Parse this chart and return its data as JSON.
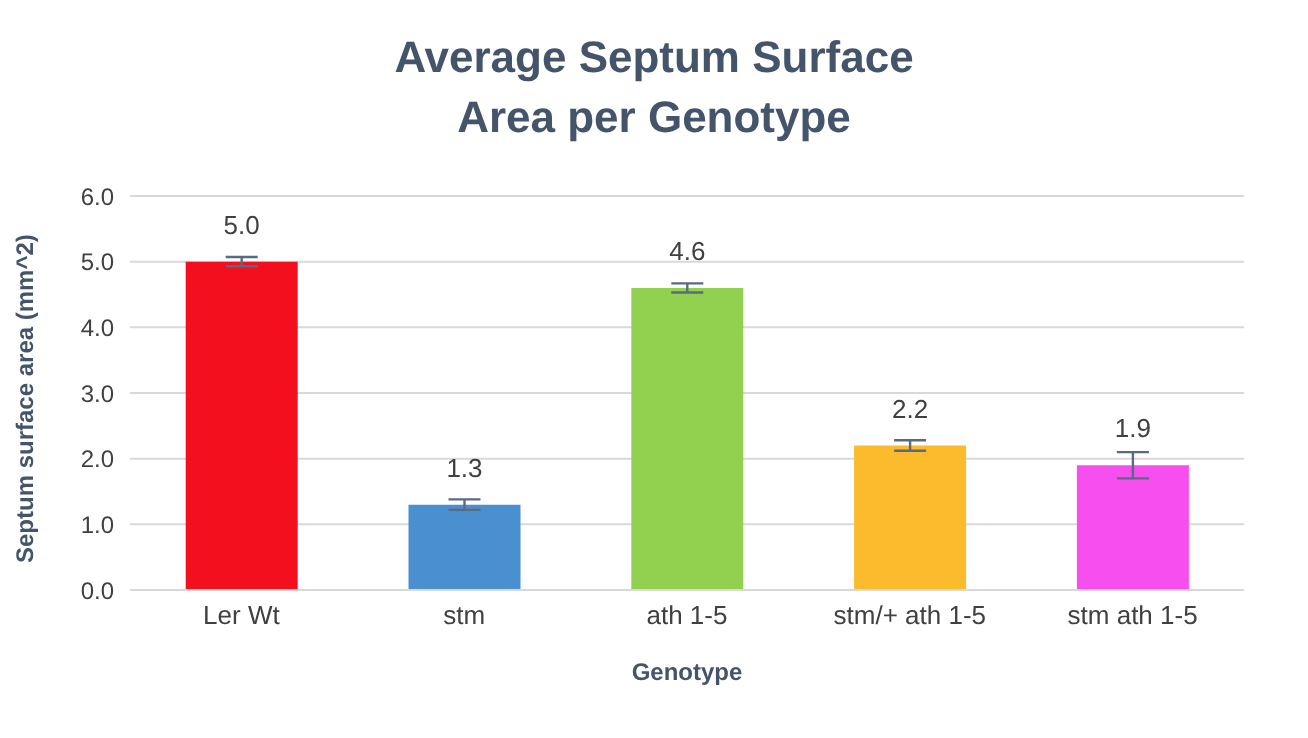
{
  "chart_data": {
    "type": "bar",
    "title": "Average Septum Surface\nArea per Genotype",
    "xlabel": "Genotype",
    "ylabel": "Septum surface area (mm^2)",
    "categories": [
      "Ler Wt",
      "stm",
      "ath 1-5",
      "stm/+ ath 1-5",
      "stm ath 1-5"
    ],
    "values": [
      5.0,
      1.3,
      4.6,
      2.2,
      1.9
    ],
    "colors": [
      "#f40f1f",
      "#4a8fd0",
      "#92d050",
      "#fbbb2d",
      "#f74ef0"
    ],
    "errors": [
      0.07,
      0.08,
      0.07,
      0.08,
      0.2
    ],
    "ylim": [
      0,
      6
    ],
    "yticks": [
      {
        "value": 0,
        "label": "0.0"
      },
      {
        "value": 1,
        "label": "1.0"
      },
      {
        "value": 2,
        "label": "2.0"
      },
      {
        "value": 3,
        "label": "3.0"
      },
      {
        "value": 4,
        "label": "4.0"
      },
      {
        "value": 5,
        "label": "5.0"
      },
      {
        "value": 6,
        "label": "6.0"
      }
    ],
    "value_labels": [
      "5.0",
      "1.3",
      "4.6",
      "2.2",
      "1.9"
    ],
    "grid": "y",
    "legend": false
  }
}
